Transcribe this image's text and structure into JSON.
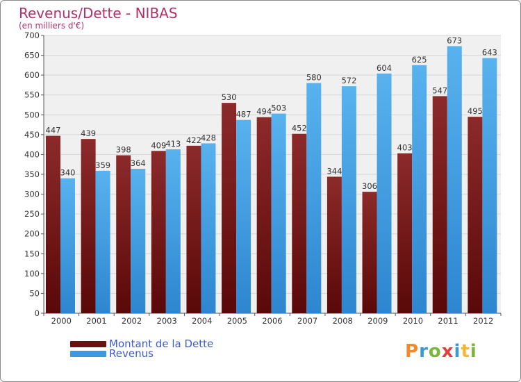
{
  "title": "Revenus/Dette - NIBAS",
  "subtitle": "(en milliers d'€)",
  "colors": {
    "dette": "#7a1a1a",
    "revenus": "#4aa6e6",
    "grid": "#dddddd",
    "plot_bg": "#f0f0f0"
  },
  "legend": [
    {
      "label": "Montant de la Dette",
      "color": "#6b0f0f"
    },
    {
      "label": "Revenus",
      "color": "#3f97dd"
    }
  ],
  "logo": {
    "text": "Proxiti",
    "letter_colors": [
      "#f28a2a",
      "#3a9ad8",
      "#7ab73a",
      "#e04040",
      "#3a9ad8",
      "#f2b83a",
      "#7ab73a"
    ]
  },
  "chart_data": {
    "type": "bar",
    "title": "Revenus/Dette - NIBAS",
    "ylim": [
      0,
      700
    ],
    "ytick_step": 50,
    "grid": true,
    "categories": [
      "2000",
      "2001",
      "2002",
      "2003",
      "2004",
      "2005",
      "2006",
      "2007",
      "2008",
      "2009",
      "2010",
      "2011",
      "2012"
    ],
    "series": [
      {
        "name": "Montant de la Dette",
        "values": [
          447,
          439,
          398,
          409,
          422,
          530,
          494,
          452,
          344,
          306,
          403,
          547,
          495
        ]
      },
      {
        "name": "Revenus",
        "values": [
          340,
          359,
          364,
          413,
          428,
          487,
          503,
          580,
          572,
          604,
          625,
          673,
          643
        ]
      }
    ]
  }
}
